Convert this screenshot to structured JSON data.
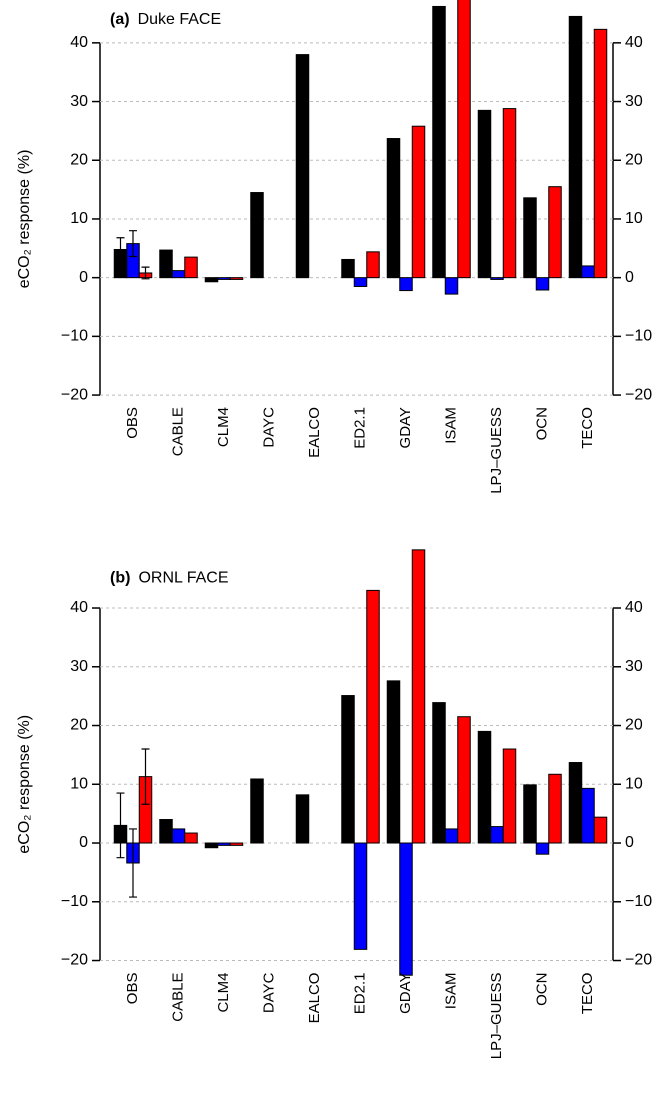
{
  "chart_data": [
    {
      "type": "bar",
      "title_tag": "(a)",
      "title": "Duke FACE",
      "ylabel": "eCO₂ response (%)",
      "categories": [
        "OBS",
        "CABLE",
        "CLM4",
        "DAYC",
        "EALCO",
        "ED2.1",
        "GDAY",
        "ISAM",
        "LPJ–GUESS",
        "OCN",
        "TECO"
      ],
      "series": [
        {
          "color": "#000000",
          "values": [
            4.8,
            4.7,
            -0.7,
            14.5,
            38,
            3.1,
            23.7,
            46.2,
            28.5,
            13.6,
            44.5
          ],
          "errors": [
            2,
            null,
            null,
            null,
            null,
            null,
            null,
            null,
            null,
            null,
            null
          ]
        },
        {
          "color": "#0000ff",
          "values": [
            5.8,
            1.2,
            -0.3,
            null,
            null,
            -1.5,
            -2.2,
            -2.8,
            -0.3,
            -2.1,
            2
          ],
          "errors": [
            2.2,
            null,
            null,
            null,
            null,
            null,
            null,
            null,
            null,
            null,
            null
          ]
        },
        {
          "color": "#ff0000",
          "values": [
            0.8,
            3.5,
            -0.3,
            null,
            null,
            4.4,
            25.8,
            49,
            28.8,
            15.5,
            42.3
          ],
          "errors": [
            1,
            null,
            null,
            null,
            null,
            null,
            null,
            null,
            null,
            null,
            null
          ]
        }
      ],
      "ylim": [
        -20.5,
        47.3
      ],
      "yticks": [
        {
          "value": -20,
          "label": "−20"
        },
        {
          "value": -10,
          "label": "−10"
        },
        0,
        10,
        20,
        30,
        40
      ],
      "grid": true
    },
    {
      "type": "bar",
      "title_tag": "(b)",
      "title": "ORNL FACE",
      "ylabel": "eCO₂ response (%)",
      "categories": [
        "OBS",
        "CABLE",
        "CLM4",
        "DAYC",
        "EALCO",
        "ED2.1",
        "GDAY",
        "ISAM",
        "LPJ–GUESS",
        "OCN",
        "TECO"
      ],
      "series": [
        {
          "color": "#000000",
          "values": [
            3,
            4,
            -0.8,
            10.9,
            8.2,
            25.1,
            27.6,
            23.9,
            19,
            9.9,
            13.7
          ],
          "errors": [
            5.5,
            null,
            null,
            null,
            null,
            null,
            null,
            null,
            null,
            null,
            null
          ]
        },
        {
          "color": "#0000ff",
          "values": [
            -3.4,
            2.4,
            -0.4,
            null,
            null,
            -18.1,
            -22.5,
            2.4,
            2.8,
            -1.9,
            9.3
          ],
          "errors": [
            5.8,
            null,
            null,
            null,
            null,
            null,
            null,
            null,
            null,
            null,
            null
          ]
        },
        {
          "color": "#ff0000",
          "values": [
            11.3,
            1.7,
            -0.4,
            null,
            null,
            43,
            49.9,
            21.5,
            16,
            11.7,
            4.4
          ],
          "errors": [
            4.7,
            null,
            null,
            null,
            null,
            null,
            null,
            null,
            null,
            null,
            null
          ]
        }
      ],
      "ylim": [
        -22.6,
        50.3
      ],
      "yticks": [
        {
          "value": -20,
          "label": "−20"
        },
        {
          "value": -10,
          "label": "−10"
        },
        0,
        10,
        20,
        30,
        40
      ],
      "grid": true
    }
  ]
}
